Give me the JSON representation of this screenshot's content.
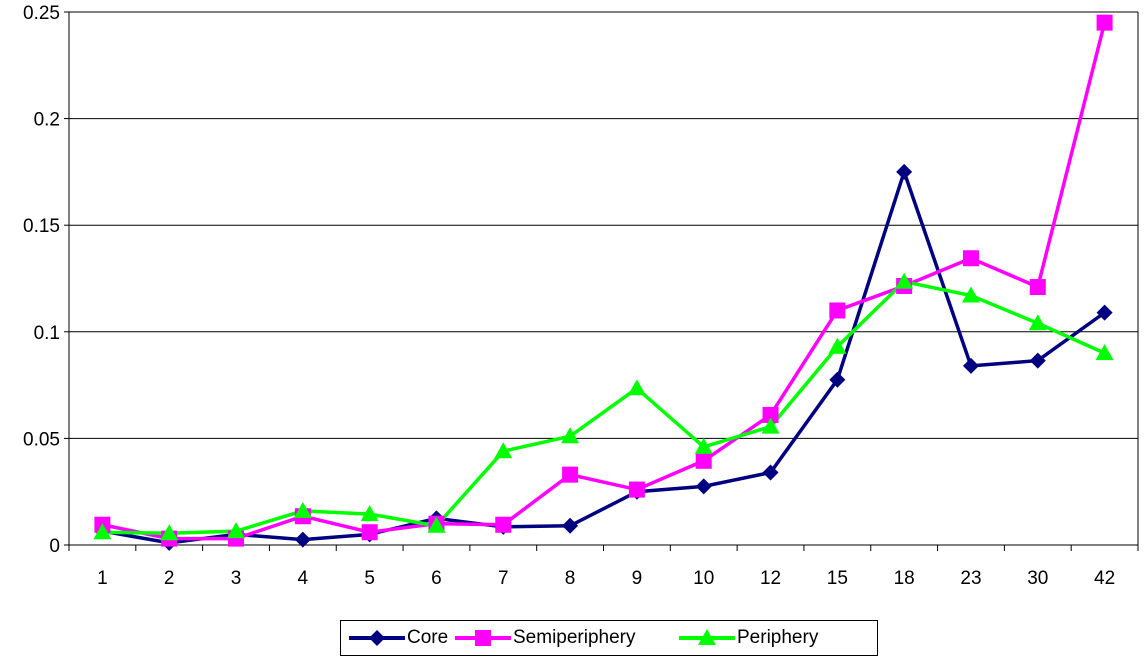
{
  "chart_data": {
    "type": "line",
    "title": "",
    "xlabel": "",
    "ylabel": "",
    "categories": [
      "1",
      "2",
      "3",
      "4",
      "5",
      "6",
      "7",
      "8",
      "9",
      "10",
      "12",
      "15",
      "18",
      "23",
      "30",
      "42"
    ],
    "ylim": [
      0,
      0.25
    ],
    "y_ticks": [
      0,
      0.05,
      0.1,
      0.15,
      0.2,
      0.25
    ],
    "y_tick_labels": [
      "0",
      "0.05",
      "0.1",
      "0.15",
      "0.2",
      "0.25"
    ],
    "grid": "horizontal",
    "legend_position": "bottom",
    "series": [
      {
        "name": "Core",
        "color": "#000080",
        "marker": "diamond",
        "values": [
          0.0065,
          0.001,
          0.005,
          0.0025,
          0.005,
          0.0125,
          0.0085,
          0.009,
          0.025,
          0.0275,
          0.034,
          0.0775,
          0.175,
          0.084,
          0.0865,
          0.109
        ]
      },
      {
        "name": "Semiperiphery",
        "color": "#FF00FF",
        "marker": "square",
        "values": [
          0.0095,
          0.003,
          0.003,
          0.0135,
          0.006,
          0.01,
          0.0095,
          0.033,
          0.026,
          0.0395,
          0.061,
          0.11,
          0.1215,
          0.1345,
          0.121,
          0.245
        ]
      },
      {
        "name": "Periphery",
        "color": "#00FF00",
        "marker": "triangle",
        "values": [
          0.006,
          0.0055,
          0.0065,
          0.016,
          0.0145,
          0.009,
          0.044,
          0.051,
          0.0735,
          0.046,
          0.0555,
          0.093,
          0.1235,
          0.117,
          0.104,
          0.09
        ]
      }
    ]
  }
}
